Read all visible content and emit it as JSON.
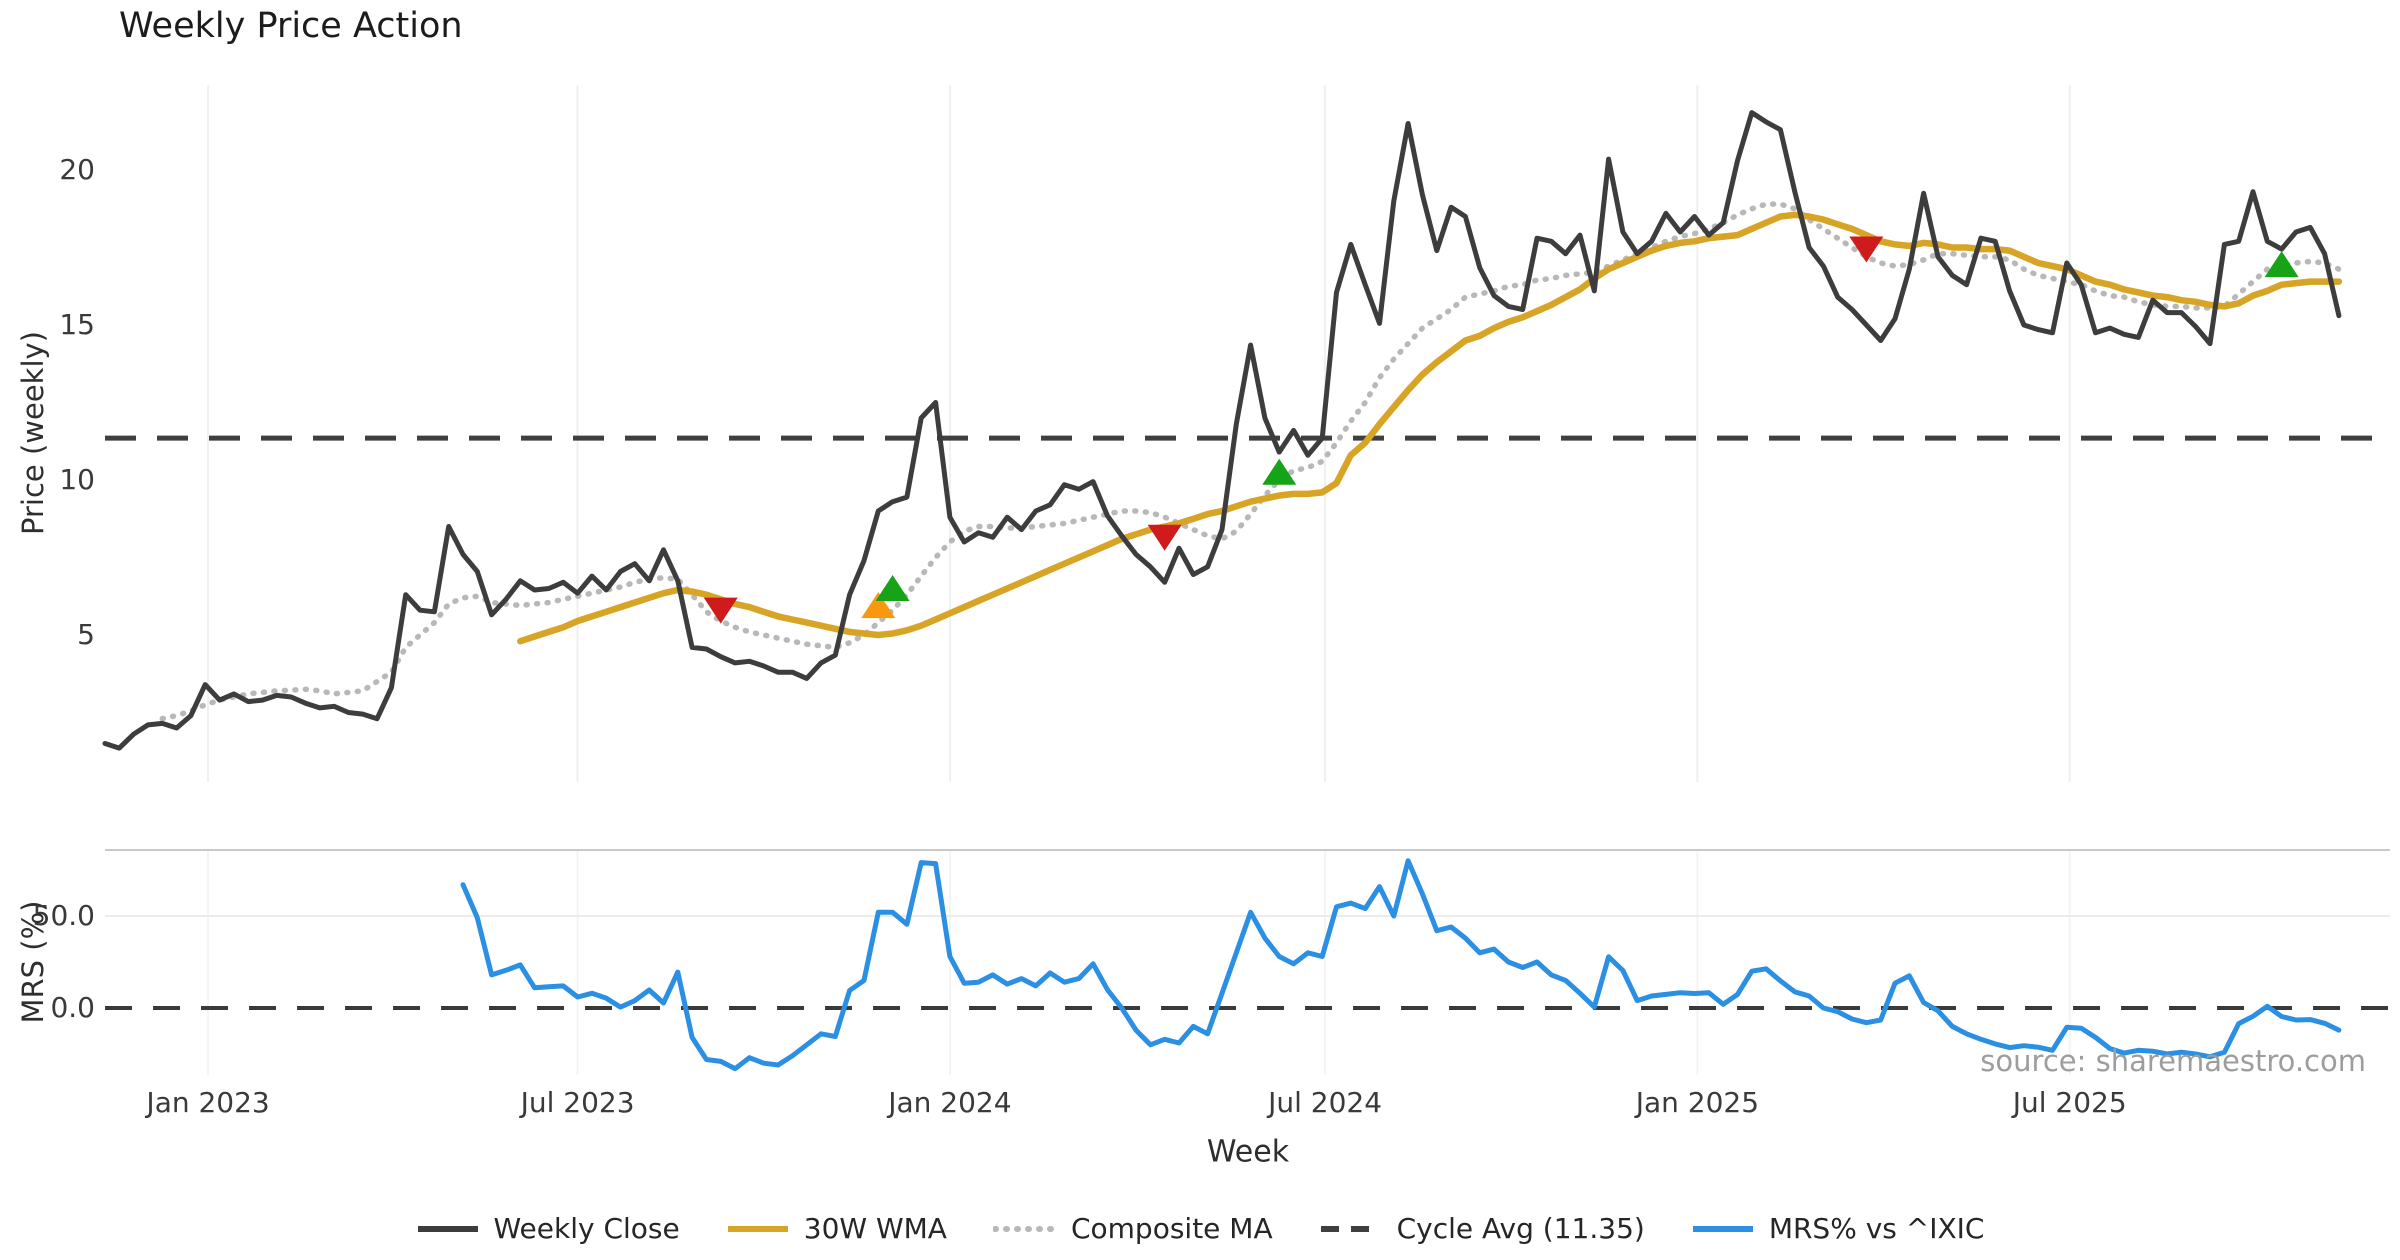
{
  "header": {
    "title": "Weekly Price Action"
  },
  "footer": {
    "source": "source: sharemaestro.com"
  },
  "colors": {
    "close": "#3d3d3d",
    "wma": "#d8a426",
    "composite": "#b8b8b8",
    "cycle_avg": "#3f3f3f",
    "mrs": "#2b8fe3",
    "sell": "#cf1b1b",
    "buy": "#17a317",
    "entry": "#f8980f",
    "grid": "#eef1ee",
    "panel_border": "#c9c9c9",
    "background": "#ffffff"
  },
  "legend": {
    "items": [
      {
        "label": "Weekly Close",
        "color": "#3d3d3d",
        "style": "solid"
      },
      {
        "label": "30W WMA",
        "color": "#d8a426",
        "style": "solid"
      },
      {
        "label": "Composite MA",
        "color": "#b8b8b8",
        "style": "dotted"
      },
      {
        "label": "Cycle Avg (11.35)",
        "color": "#3f3f3f",
        "style": "dashed"
      },
      {
        "label": "MRS% vs ^IXIC",
        "color": "#2b8fe3",
        "style": "solid"
      }
    ]
  },
  "chart_data": [
    {
      "id": "price-panel",
      "type": "line",
      "title": "Weekly Price Action",
      "ylabel": "Price (weekly)",
      "ylim": [
        0.25,
        22.75
      ],
      "grid": "vertical-only",
      "cycle_avg_value": 11.35,
      "yticks": [
        {
          "value": 5,
          "label": "5"
        },
        {
          "value": 10,
          "label": "10"
        },
        {
          "value": 15,
          "label": "15"
        },
        {
          "value": 20,
          "label": "20"
        }
      ],
      "xticks": [
        {
          "week": 7.2,
          "label": "Jan 2023"
        },
        {
          "week": 33.0,
          "label": "Jul 2023"
        },
        {
          "week": 59.0,
          "label": "Jan 2024"
        },
        {
          "week": 85.2,
          "label": "Jul 2024"
        },
        {
          "week": 111.2,
          "label": "Jan 2025"
        },
        {
          "week": 137.2,
          "label": "Jul 2025"
        }
      ],
      "series": [
        {
          "name": "Weekly Close",
          "color_key": "close",
          "style": "solid",
          "width": 5,
          "start_week": 0,
          "values": [
            1.5,
            1.35,
            1.8,
            2.1,
            2.15,
            2.0,
            2.4,
            3.4,
            2.9,
            3.1,
            2.85,
            2.9,
            3.05,
            3.0,
            2.8,
            2.65,
            2.7,
            2.5,
            2.45,
            2.3,
            3.3,
            6.3,
            5.8,
            5.75,
            8.5,
            7.6,
            7.05,
            5.65,
            6.15,
            6.75,
            6.45,
            6.5,
            6.7,
            6.35,
            6.9,
            6.45,
            7.05,
            7.3,
            6.75,
            7.75,
            6.75,
            4.6,
            4.55,
            4.3,
            4.1,
            4.15,
            4.0,
            3.8,
            3.8,
            3.6,
            4.1,
            4.35,
            6.3,
            7.4,
            9.0,
            9.3,
            9.45,
            12.0,
            12.5,
            8.8,
            8.0,
            8.3,
            8.15,
            8.8,
            8.4,
            9.0,
            9.2,
            9.85,
            9.7,
            9.95,
            8.85,
            8.2,
            7.6,
            7.2,
            6.7,
            7.8,
            6.95,
            7.2,
            8.4,
            11.8,
            14.35,
            12.0,
            10.9,
            11.6,
            10.8,
            11.35,
            16.05,
            17.6,
            16.3,
            15.05,
            19.0,
            21.5,
            19.2,
            17.4,
            18.8,
            18.5,
            16.85,
            15.95,
            15.6,
            15.5,
            17.8,
            17.7,
            17.3,
            17.9,
            16.1,
            20.35,
            18.0,
            17.3,
            17.7,
            18.6,
            18.0,
            18.5,
            17.9,
            18.3,
            20.3,
            21.85,
            21.55,
            21.3,
            19.3,
            17.5,
            16.9,
            15.9,
            15.5,
            15.0,
            14.5,
            15.2,
            16.8,
            19.25,
            17.2,
            16.6,
            16.3,
            17.8,
            17.7,
            16.1,
            15.0,
            14.85,
            14.75,
            17.0,
            16.3,
            14.75,
            14.9,
            14.7,
            14.6,
            15.8,
            15.4,
            15.4,
            14.95,
            14.4,
            17.6,
            17.7,
            19.3,
            17.7,
            17.45,
            18.0,
            18.15,
            17.3,
            15.3
          ]
        },
        {
          "name": "30W WMA",
          "color_key": "wma",
          "style": "solid",
          "width": 6.5,
          "start_week": 29,
          "values": [
            4.8,
            4.95,
            5.1,
            5.25,
            5.45,
            5.6,
            5.75,
            5.9,
            6.05,
            6.2,
            6.35,
            6.45,
            6.4,
            6.3,
            6.15,
            6.0,
            5.9,
            5.75,
            5.6,
            5.5,
            5.4,
            5.3,
            5.2,
            5.1,
            5.05,
            5.0,
            5.05,
            5.15,
            5.3,
            5.5,
            5.7,
            5.9,
            6.1,
            6.3,
            6.5,
            6.7,
            6.9,
            7.1,
            7.3,
            7.5,
            7.7,
            7.9,
            8.1,
            8.25,
            8.4,
            8.5,
            8.6,
            8.75,
            8.9,
            9.0,
            9.15,
            9.3,
            9.4,
            9.5,
            9.55,
            9.55,
            9.6,
            9.9,
            10.8,
            11.2,
            11.8,
            12.35,
            12.9,
            13.4,
            13.8,
            14.15,
            14.5,
            14.65,
            14.9,
            15.1,
            15.25,
            15.45,
            15.65,
            15.9,
            16.15,
            16.5,
            16.8,
            17.0,
            17.2,
            17.4,
            17.55,
            17.65,
            17.7,
            17.8,
            17.85,
            17.9,
            18.1,
            18.3,
            18.5,
            18.55,
            18.5,
            18.4,
            18.25,
            18.1,
            17.9,
            17.7,
            17.6,
            17.55,
            17.65,
            17.6,
            17.5,
            17.5,
            17.45,
            17.45,
            17.4,
            17.2,
            17.0,
            16.9,
            16.8,
            16.6,
            16.4,
            16.3,
            16.15,
            16.05,
            15.95,
            15.9,
            15.8,
            15.75,
            15.65,
            15.6,
            15.7,
            15.95,
            16.1,
            16.3,
            16.35,
            16.4,
            16.4,
            16.4
          ]
        },
        {
          "name": "Composite MA",
          "color_key": "composite",
          "style": "dotted",
          "width": 5.5,
          "start_week": 4,
          "values": [
            2.3,
            2.4,
            2.55,
            2.75,
            2.9,
            3.0,
            3.1,
            3.15,
            3.2,
            3.22,
            3.25,
            3.2,
            3.1,
            3.15,
            3.2,
            3.5,
            3.8,
            4.6,
            5.0,
            5.4,
            6.0,
            6.2,
            6.25,
            6.05,
            6.0,
            5.95,
            6.0,
            6.05,
            6.15,
            6.25,
            6.35,
            6.45,
            6.55,
            6.7,
            6.8,
            6.85,
            6.8,
            6.3,
            5.75,
            5.45,
            5.25,
            5.1,
            5.0,
            4.9,
            4.8,
            4.7,
            4.65,
            4.6,
            4.75,
            5.0,
            5.4,
            5.8,
            6.3,
            6.9,
            7.5,
            8.0,
            8.35,
            8.5,
            8.5,
            8.45,
            8.45,
            8.5,
            8.55,
            8.6,
            8.7,
            8.8,
            8.9,
            9.0,
            9.0,
            8.95,
            8.8,
            8.6,
            8.4,
            8.2,
            8.1,
            8.35,
            8.9,
            9.5,
            10.0,
            10.3,
            10.4,
            10.6,
            11.2,
            11.9,
            12.5,
            13.3,
            13.9,
            14.4,
            14.9,
            15.2,
            15.5,
            15.9,
            16.0,
            16.1,
            16.25,
            16.3,
            16.45,
            16.5,
            16.6,
            16.65,
            16.7,
            16.9,
            17.1,
            17.3,
            17.5,
            17.7,
            17.85,
            17.95,
            18.1,
            18.3,
            18.55,
            18.75,
            18.9,
            18.9,
            18.75,
            18.4,
            18.1,
            17.8,
            17.5,
            17.2,
            17.0,
            16.9,
            16.95,
            17.1,
            17.3,
            17.3,
            17.25,
            17.2,
            17.2,
            17.1,
            16.8,
            16.6,
            16.5,
            16.4,
            16.3,
            16.1,
            15.95,
            15.9,
            15.75,
            15.65,
            15.6,
            15.6,
            15.55,
            15.55,
            15.6,
            16.0,
            16.4,
            16.8,
            16.9,
            17.0,
            17.05,
            17.0,
            16.8
          ]
        },
        {
          "name": "Cycle Avg (11.35)",
          "color_key": "cycle_avg",
          "style": "dashed",
          "width": 5,
          "constant": 11.35
        }
      ],
      "signals": [
        {
          "kind": "sell",
          "week": 43,
          "value": 5.85
        },
        {
          "kind": "entry",
          "week": 54,
          "value": 5.9
        },
        {
          "kind": "buy",
          "week": 55,
          "value": 6.45
        },
        {
          "kind": "sell",
          "week": 74,
          "value": 8.2
        },
        {
          "kind": "buy",
          "week": 82,
          "value": 10.2
        },
        {
          "kind": "sell",
          "week": 123,
          "value": 17.5
        },
        {
          "kind": "buy",
          "week": 152,
          "value": 16.9
        }
      ]
    },
    {
      "id": "mrs-panel",
      "type": "line",
      "ylabel": "MRS (%)",
      "xlabel": "Week",
      "ylim": [
        -36,
        86
      ],
      "yticks": [
        {
          "value": 0,
          "label": "0.0"
        },
        {
          "value": 50,
          "label": "50.0"
        }
      ],
      "zero_line": 0,
      "series": [
        {
          "name": "MRS% vs ^IXIC",
          "color_key": "mrs",
          "style": "solid",
          "width": 5,
          "start_week": 25,
          "values": [
            67,
            49,
            18,
            20.5,
            23.4,
            11,
            11.5,
            12,
            6,
            8,
            5.4,
            0.5,
            4,
            9.8,
            2.7,
            19.5,
            -16,
            -28,
            -29,
            -33,
            -27,
            -30,
            -31,
            -26,
            -20,
            -14,
            -15.5,
            9.5,
            15,
            52,
            52,
            45.5,
            79,
            78.5,
            28,
            13.5,
            14,
            18,
            13,
            16,
            12,
            19,
            14,
            16,
            24,
            10,
            0,
            -12,
            -20,
            -17,
            -19,
            -10,
            -14,
            8,
            30,
            52,
            38,
            28,
            24,
            30,
            28,
            55,
            57,
            54,
            66,
            50,
            80,
            62,
            42,
            44,
            38,
            30,
            32,
            25,
            22,
            25,
            18,
            15,
            8,
            0.5,
            27.8,
            20.4,
            4,
            6.5,
            7.4,
            8.3,
            7.9,
            8.3,
            2,
            7.4,
            20,
            21.3,
            14.8,
            8.8,
            6.5,
            0,
            -2,
            -6,
            -8,
            -6.5,
            13.5,
            17.5,
            3,
            -1.5,
            -10,
            -14,
            -17,
            -19.5,
            -21.5,
            -20.5,
            -21.3,
            -23,
            -10.5,
            -11,
            -16,
            -22,
            -24.5,
            -23,
            -23.5,
            -25,
            -24,
            -25,
            -26.5,
            -24,
            -8.5,
            -4.5,
            0.9,
            -4.6,
            -6.5,
            -6.3,
            -8.3,
            -12
          ]
        }
      ]
    }
  ]
}
